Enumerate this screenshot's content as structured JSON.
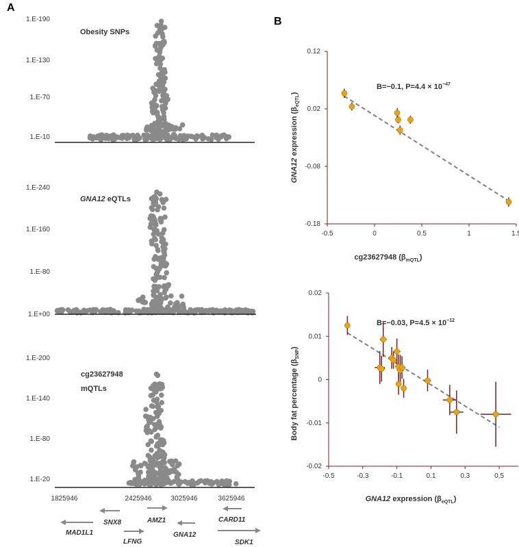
{
  "panel_labels": {
    "a": "A",
    "b": "B"
  },
  "colors": {
    "dots": "#8a8a8a",
    "gold": "#e8a413",
    "errorbar": "#7b1e1e",
    "trend": "#7f7f7f",
    "axis": "#222222",
    "scatter_axis": "#7b1e1e"
  },
  "chart_data": [
    {
      "id": "obesity",
      "type": "scatter",
      "title": "Obesity SNPs",
      "ytick_labels": [
        "1.E-190",
        "1.E-130",
        "1.E-70",
        "1.E-10"
      ],
      "ytick_values": [
        190,
        130,
        70,
        10
      ],
      "ylim": [
        0,
        195
      ],
      "xlim": [
        1825946,
        3925946
      ]
    },
    {
      "id": "eqtl",
      "type": "scatter",
      "title_italic": "GNA12",
      "title_rest": " eQTLs",
      "ytick_labels": [
        "1.E-240",
        "1.E-160",
        "1.E-80",
        "1.E+00"
      ],
      "ytick_values": [
        240,
        160,
        80,
        0
      ],
      "ylim": [
        0,
        245
      ],
      "xlim": [
        1825946,
        3925946
      ]
    },
    {
      "id": "mqtl",
      "type": "scatter",
      "title_line1": "cg23627948",
      "title_line2": "mQTLs",
      "ytick_labels": [
        "1.E-200",
        "1.E-140",
        "1.E-80",
        "1.E-20"
      ],
      "ytick_values": [
        200,
        140,
        80,
        20
      ],
      "ylim": [
        0,
        205
      ],
      "xlim": [
        1825946,
        3925946
      ],
      "xtick_labels": [
        "1825946",
        "2425946",
        "3025946",
        "3625946"
      ],
      "xtick_values": [
        1825946,
        2425946,
        3025946,
        3625946
      ]
    },
    {
      "id": "scatter1",
      "type": "scatter",
      "annotation": "B=−0.1, P=4.4 × 10",
      "annotation_exp": "−47",
      "xlabel_main": "cg23627948 (β",
      "xlabel_sub": "mQTL",
      "xlabel_end": ")",
      "ylabel_italic": "GNA12",
      "ylabel_main": " expression (β",
      "ylabel_sub": "eQTL",
      "ylabel_end": ")",
      "xlim": [
        -0.5,
        1.5
      ],
      "ylim": [
        -0.18,
        0.12
      ],
      "xticks": [
        -0.5,
        0,
        0.5,
        1,
        1.5
      ],
      "xtick_labels": [
        "-0.5",
        "0",
        "0.5",
        "1",
        "1.5"
      ],
      "yticks": [
        0.12,
        0.02,
        -0.08,
        -0.18
      ],
      "ytick_labels": [
        "0.12",
        "0.02",
        "-0.08",
        "-0.18"
      ],
      "points": [
        {
          "x": -0.32,
          "y": 0.047,
          "ex": 0.02,
          "ey": 0.008
        },
        {
          "x": -0.24,
          "y": 0.024,
          "ex": 0.02,
          "ey": 0.007
        },
        {
          "x": 0.24,
          "y": 0.013,
          "ex": 0.02,
          "ey": 0.008
        },
        {
          "x": 0.25,
          "y": 0.001,
          "ex": 0.02,
          "ey": 0.006
        },
        {
          "x": 0.38,
          "y": 0.001,
          "ex": 0.03,
          "ey": 0.007
        },
        {
          "x": 0.27,
          "y": -0.017,
          "ex": 0.02,
          "ey": 0.008
        },
        {
          "x": 1.42,
          "y": -0.142,
          "ex": 0.02,
          "ey": 0.008
        }
      ],
      "trend": {
        "x0": -0.32,
        "y0": 0.042,
        "x1": 1.42,
        "y1": -0.14
      }
    },
    {
      "id": "scatter2",
      "type": "scatter",
      "annotation": "B=−0.03, P=4.5 × 10",
      "annotation_exp": "−12",
      "xlabel_italic": "GNA12",
      "xlabel_main": " expression (β",
      "xlabel_sub": "eQTL",
      "xlabel_end": ")",
      "ylabel_main": "Body fat percentage (β",
      "ylabel_sub": "SNP",
      "ylabel_end": ")",
      "xlim": [
        -0.5,
        0.6
      ],
      "ylim": [
        -0.02,
        0.02
      ],
      "xticks": [
        -0.5,
        -0.3,
        -0.1,
        0.1,
        0.3,
        0.5
      ],
      "xtick_labels": [
        "-0.5",
        "-0.3",
        "-0.1",
        "0.1",
        "0.3",
        "0.5"
      ],
      "yticks": [
        0.02,
        0.01,
        0,
        -0.01,
        -0.02
      ],
      "ytick_labels": [
        "0.02",
        "0.01",
        "0",
        "-0.01",
        "-0.02"
      ],
      "points": [
        {
          "x": -0.39,
          "y": 0.0125,
          "ex": 0.01,
          "ey": 0.0022
        },
        {
          "x": -0.2,
          "y": 0.0028,
          "ex": 0.03,
          "ey": 0.0038
        },
        {
          "x": -0.19,
          "y": 0.0025,
          "ex": 0.02,
          "ey": 0.003
        },
        {
          "x": -0.18,
          "y": 0.0093,
          "ex": 0.02,
          "ey": 0.004
        },
        {
          "x": -0.13,
          "y": 0.005,
          "ex": 0.02,
          "ey": 0.0025
        },
        {
          "x": -0.12,
          "y": 0.0045,
          "ex": 0.015,
          "ey": 0.002
        },
        {
          "x": -0.1,
          "y": 0.0065,
          "ex": 0.02,
          "ey": 0.003
        },
        {
          "x": -0.09,
          "y": 0.003,
          "ex": 0.02,
          "ey": 0.0028
        },
        {
          "x": -0.08,
          "y": 0.0022,
          "ex": 0.02,
          "ey": 0.0035
        },
        {
          "x": -0.07,
          "y": 0.0028,
          "ex": 0.02,
          "ey": 0.0026
        },
        {
          "x": -0.09,
          "y": -0.001,
          "ex": 0.015,
          "ey": 0.0025
        },
        {
          "x": -0.06,
          "y": -0.002,
          "ex": 0.015,
          "ey": 0.0022
        },
        {
          "x": 0.08,
          "y": -0.0002,
          "ex": 0.02,
          "ey": 0.0025
        },
        {
          "x": 0.21,
          "y": -0.0047,
          "ex": 0.04,
          "ey": 0.0035
        },
        {
          "x": 0.25,
          "y": -0.0075,
          "ex": 0.04,
          "ey": 0.005
        },
        {
          "x": 0.48,
          "y": -0.008,
          "ex": 0.09,
          "ey": 0.0075
        }
      ],
      "trend": {
        "x0": -0.39,
        "y0": 0.0108,
        "x1": 0.5,
        "y1": -0.011
      }
    }
  ],
  "genes": [
    {
      "name": "MAD1L1",
      "dir": "left"
    },
    {
      "name": "SNX8",
      "dir": "left"
    },
    {
      "name": "LFNG",
      "dir": "right"
    },
    {
      "name": "AMZ1",
      "dir": "right"
    },
    {
      "name": "GNA12",
      "dir": "left"
    },
    {
      "name": "CARD11",
      "dir": "left"
    },
    {
      "name": "SDK1",
      "dir": "right"
    }
  ]
}
